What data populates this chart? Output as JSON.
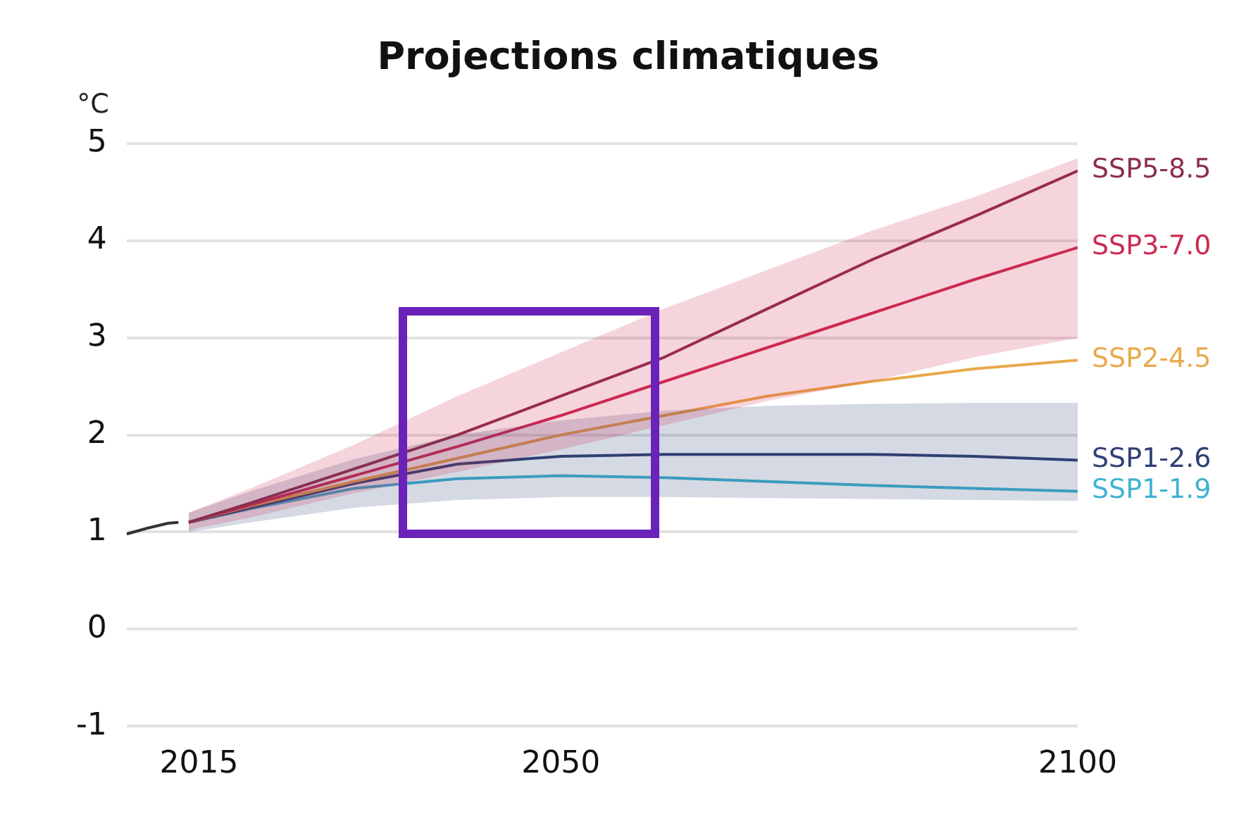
{
  "chart_data": {
    "type": "line",
    "title": "Projections climatiques",
    "ylabel": "°C",
    "xlim": [
      2008,
      2100
    ],
    "xticks": [
      2015,
      2050,
      2100
    ],
    "ylim": [
      -1,
      5
    ],
    "yticks": [
      -1,
      0,
      1,
      2,
      3,
      4,
      5
    ],
    "grid": "y",
    "marker": "none",
    "line_style": "solid",
    "series": [
      {
        "color": "#333333",
        "x": [
          2008,
          2010,
          2012,
          2013
        ],
        "values": [
          0.98,
          1.04,
          1.09,
          1.1
        ]
      },
      {
        "name": "SSP5-8.5",
        "color": "#8c2e4a",
        "x": [
          2014,
          2020,
          2030,
          2040,
          2050,
          2060,
          2070,
          2080,
          2090,
          2100
        ],
        "values": [
          1.1,
          1.3,
          1.65,
          2.0,
          2.4,
          2.8,
          3.3,
          3.8,
          4.25,
          4.72
        ]
      },
      {
        "name": "SSP3-7.0",
        "color": "#cc2a50",
        "x": [
          2014,
          2020,
          2030,
          2040,
          2050,
          2060,
          2070,
          2080,
          2090,
          2100
        ],
        "values": [
          1.1,
          1.28,
          1.58,
          1.88,
          2.2,
          2.55,
          2.9,
          3.25,
          3.6,
          3.93
        ],
        "lower": [
          1.02,
          1.15,
          1.4,
          1.62,
          1.85,
          2.1,
          2.35,
          2.55,
          2.8,
          3.0
        ],
        "upper": [
          1.2,
          1.45,
          1.9,
          2.4,
          2.85,
          3.3,
          3.7,
          4.1,
          4.45,
          4.85
        ]
      },
      {
        "name": "SSP2-4.5",
        "color": "#e8a94a",
        "x": [
          2014,
          2020,
          2030,
          2040,
          2050,
          2060,
          2070,
          2080,
          2090,
          2100
        ],
        "values": [
          1.1,
          1.27,
          1.52,
          1.76,
          2.0,
          2.2,
          2.4,
          2.55,
          2.68,
          2.77
        ]
      },
      {
        "name": "SSP1-2.6",
        "color": "#2f3f75",
        "x": [
          2014,
          2020,
          2030,
          2040,
          2050,
          2060,
          2070,
          2080,
          2090,
          2100
        ],
        "values": [
          1.1,
          1.25,
          1.5,
          1.7,
          1.78,
          1.8,
          1.8,
          1.8,
          1.78,
          1.74
        ],
        "lower": [
          1.0,
          1.1,
          1.25,
          1.33,
          1.36,
          1.36,
          1.35,
          1.34,
          1.33,
          1.32
        ],
        "upper": [
          1.2,
          1.42,
          1.75,
          2.0,
          2.15,
          2.25,
          2.3,
          2.32,
          2.33,
          2.33
        ]
      },
      {
        "name": "SSP1-1.9",
        "color": "#3fb2d2",
        "x": [
          2014,
          2020,
          2030,
          2040,
          2050,
          2060,
          2070,
          2080,
          2090,
          2100
        ],
        "values": [
          1.1,
          1.24,
          1.45,
          1.55,
          1.58,
          1.56,
          1.52,
          1.48,
          1.45,
          1.42
        ]
      }
    ]
  }
}
